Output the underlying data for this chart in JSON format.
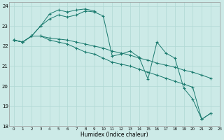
{
  "xlabel": "Humidex (Indice chaleur)",
  "background_color": "#cceae7",
  "grid_color": "#b0d8d4",
  "line_color": "#1a7a6e",
  "xlim": [
    -0.5,
    23
  ],
  "ylim": [
    18,
    24.2
  ],
  "yticks": [
    18,
    19,
    20,
    21,
    22,
    23,
    24
  ],
  "xticks": [
    0,
    1,
    2,
    3,
    4,
    5,
    6,
    7,
    8,
    9,
    10,
    11,
    12,
    13,
    14,
    15,
    16,
    17,
    18,
    19,
    20,
    21,
    22,
    23
  ],
  "series": [
    {
      "x": [
        0,
        1,
        2,
        3,
        4,
        5,
        6,
        7,
        8,
        9,
        10,
        11,
        12,
        13,
        14,
        15,
        16,
        17,
        18,
        19,
        20,
        21,
        22
      ],
      "y": [
        22.3,
        22.2,
        22.5,
        23.0,
        23.35,
        23.55,
        23.45,
        23.55,
        23.75,
        23.7,
        23.5,
        21.5,
        21.6,
        21.75,
        21.45,
        20.35,
        22.2,
        21.65,
        21.4,
        19.9,
        19.35,
        18.35,
        18.65
      ]
    },
    {
      "x": [
        0,
        1,
        2,
        3,
        4,
        5,
        6,
        7,
        8,
        9
      ],
      "y": [
        22.3,
        22.2,
        22.5,
        23.0,
        23.6,
        23.8,
        23.7,
        23.8,
        23.85,
        23.75
      ]
    },
    {
      "x": [
        0,
        1,
        2,
        3,
        4,
        5,
        6,
        7,
        8,
        9,
        10,
        11,
        12,
        13,
        14,
        15,
        16,
        17,
        18,
        19,
        20,
        21,
        22
      ],
      "y": [
        22.3,
        22.2,
        22.5,
        22.5,
        22.4,
        22.35,
        22.3,
        22.2,
        22.1,
        22.0,
        21.9,
        21.75,
        21.65,
        21.55,
        21.4,
        21.3,
        21.15,
        21.05,
        20.95,
        20.8,
        20.7,
        20.55,
        20.4
      ]
    },
    {
      "x": [
        0,
        1,
        2,
        3,
        4,
        5,
        6,
        7,
        8,
        9,
        10,
        11,
        12,
        13,
        14,
        15,
        16,
        17,
        18,
        19,
        20,
        21,
        22
      ],
      "y": [
        22.3,
        22.2,
        22.5,
        22.5,
        22.3,
        22.2,
        22.1,
        21.9,
        21.7,
        21.6,
        21.4,
        21.2,
        21.1,
        21.0,
        20.85,
        20.7,
        20.55,
        20.4,
        20.25,
        20.1,
        19.95,
        18.35,
        18.65
      ]
    }
  ]
}
